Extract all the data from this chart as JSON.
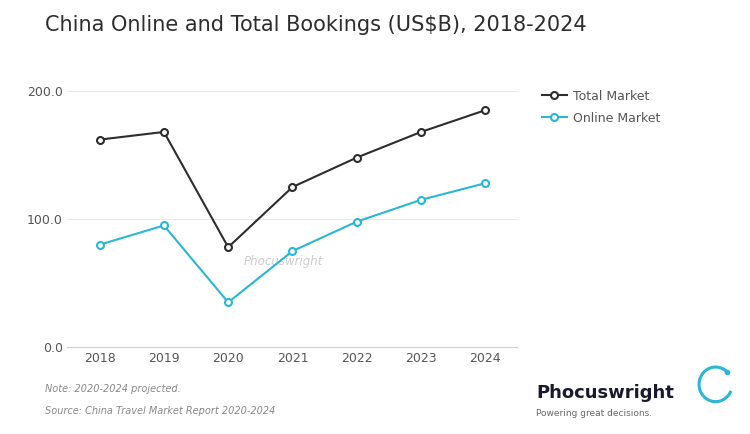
{
  "title": "China Online and Total Bookings (US$B), 2018-2024",
  "years": [
    2018,
    2019,
    2020,
    2021,
    2022,
    2023,
    2024
  ],
  "total_market": [
    162,
    168,
    78,
    125,
    148,
    168,
    185
  ],
  "online_market": [
    80,
    95,
    35,
    75,
    98,
    115,
    128
  ],
  "total_color": "#2d2d2d",
  "online_color": "#29b7d3",
  "ylim": [
    0,
    210
  ],
  "yticks": [
    0.0,
    100.0,
    200.0
  ],
  "legend_total": "Total Market",
  "legend_online": "Online Market",
  "watermark": "Phocuswright",
  "note_line1": "Note: 2020-2024 projected.",
  "note_line2": "Source: China Travel Market Report 2020-2024",
  "background_color": "#ffffff",
  "title_fontsize": 15,
  "axis_fontsize": 9,
  "legend_fontsize": 9,
  "note_fontsize": 7,
  "watermark_fontsize": 8.5,
  "phocuswright_text": "Phocuswright",
  "phocuswright_subtext": "Powering great decisions.",
  "phocuswright_color": "#1a1a2e",
  "phocuswright_cyan": "#29b7d3"
}
